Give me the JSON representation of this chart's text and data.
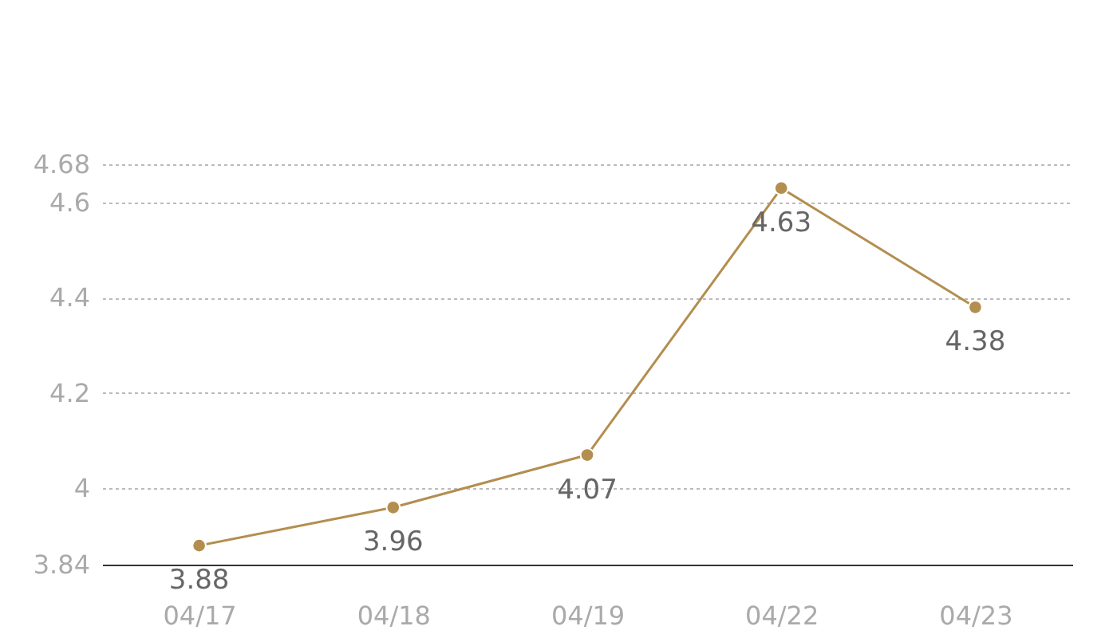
{
  "chart_data": {
    "type": "line",
    "categories": [
      "04/17",
      "04/18",
      "04/19",
      "04/22",
      "04/23"
    ],
    "series": [
      {
        "color": "#b38e4f",
        "values": [
          3.88,
          3.96,
          4.07,
          4.63,
          4.38
        ]
      }
    ],
    "ylim": [
      3.84,
      4.68
    ],
    "yticks": [
      3.84,
      4,
      4.2,
      4.4,
      4.6,
      4.68
    ],
    "grid": "y",
    "marker": "circle",
    "line_style": "solid",
    "data_labels": true
  }
}
